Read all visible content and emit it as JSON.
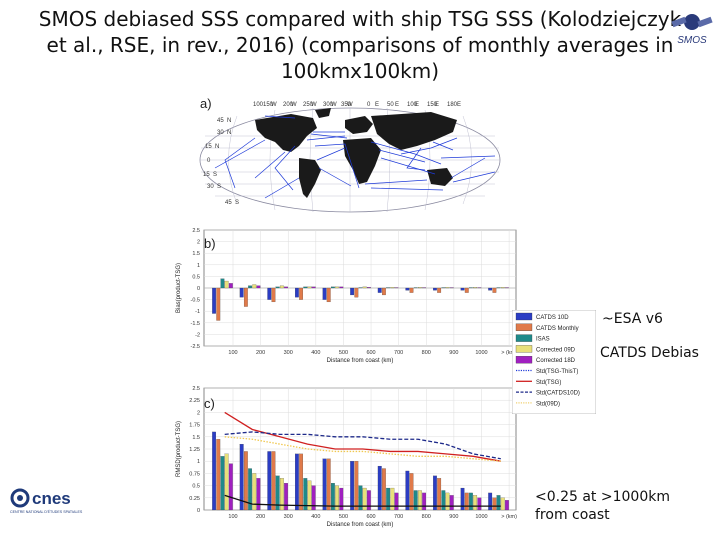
{
  "title_lines": [
    "SMOS debiased SSS compared with ship TSG SSS  (Kolodziejczyk",
    "et al., RSE, in rev., 2016) (comparisons of monthly averages in",
    "100kmx100km)"
  ],
  "panels": {
    "a": "a)",
    "b": "b)",
    "c": "c)"
  },
  "logos": {
    "smos": "SMOS",
    "cnes": "cnes",
    "cnes_sub": "CENTRE NATIONAL D'ÉTUDES SPATIALES"
  },
  "map": {
    "lon_labels": [
      "100",
      "150",
      "W",
      "200",
      "W",
      "250",
      "W",
      "300",
      "W",
      "350",
      "W",
      "0",
      "E",
      "50",
      "E",
      "100",
      "E",
      "150",
      "E",
      "180",
      "E"
    ],
    "lat_labels": [
      "45",
      "N",
      "30",
      "N",
      "15",
      "N",
      "0",
      "15",
      "S",
      "30",
      "S",
      "45",
      "S"
    ],
    "colors": {
      "land": "#1a1a1a",
      "tracks": "#1e3ad8",
      "border": "#8a8aa0"
    }
  },
  "annotations": {
    "esa": "~ESA v6",
    "catds": "CATDS Debias",
    "coast_1": "<0.25 at >1000km",
    "coast_2": "from coast"
  },
  "legend": [
    {
      "label": "CATDS 10D",
      "color": "#2b3dc4",
      "kind": "box"
    },
    {
      "label": "CATDS Monthly",
      "color": "#e07a4a",
      "kind": "box"
    },
    {
      "label": "ISAS",
      "color": "#1f8a8a",
      "kind": "box"
    },
    {
      "label": "Corrected 09D",
      "color": "#e8e07a",
      "kind": "box"
    },
    {
      "label": "Corrected 18D",
      "color": "#a020c0",
      "kind": "box"
    },
    {
      "label": "Std(TSG-ThisT)",
      "color": "#1e3ad8",
      "kind": "dot"
    },
    {
      "label": "Std(TSG)",
      "color": "#d02020",
      "kind": "line"
    },
    {
      "label": "Std(CATDS10D)",
      "color": "#1e2a8a",
      "kind": "dash"
    },
    {
      "label": "Std(09D)",
      "color": "#f0d070",
      "kind": "dot"
    }
  ],
  "chart_data": [
    {
      "type": "bar",
      "panel": "b)",
      "categories": [
        "100",
        "200",
        "300",
        "400",
        "500",
        "600",
        "700",
        "800",
        "900",
        "1000",
        "> (km)"
      ],
      "xlabel": "Distance from coast (km)",
      "ylabel": "Bias(product-TSG)",
      "ylim": [
        -2.5,
        2.5
      ],
      "yticks": [
        "2.5",
        "2",
        "1.5",
        "1",
        "0.5",
        "0",
        "-0.5",
        "-1",
        "-1.5",
        "-2",
        "-2.5"
      ],
      "grid": true,
      "series": [
        {
          "name": "CATDS 10D",
          "values": [
            -1.1,
            -0.4,
            -0.5,
            -0.4,
            -0.5,
            -0.3,
            -0.2,
            -0.1,
            -0.1,
            -0.1,
            -0.1
          ]
        },
        {
          "name": "CATDS Monthly",
          "values": [
            -1.4,
            -0.8,
            -0.6,
            -0.5,
            -0.6,
            -0.4,
            -0.3,
            -0.2,
            -0.2,
            -0.2,
            -0.2
          ]
        },
        {
          "name": "ISAS",
          "values": [
            0.4,
            0.1,
            0.05,
            0.05,
            0.05,
            0.02,
            0.02,
            0.02,
            0.02,
            0.02,
            0.02
          ]
        },
        {
          "name": "Corrected 09D",
          "values": [
            0.3,
            0.15,
            0.1,
            0.05,
            0.05,
            0.05,
            0.03,
            0.03,
            0.03,
            0.03,
            0.03
          ]
        },
        {
          "name": "Corrected 18D",
          "values": [
            0.2,
            0.1,
            0.05,
            0.05,
            0.05,
            0.03,
            0.02,
            0.02,
            0.02,
            0.02,
            0.02
          ]
        }
      ]
    },
    {
      "type": "bar",
      "panel": "c)",
      "categories": [
        "100",
        "200",
        "300",
        "400",
        "500",
        "600",
        "700",
        "800",
        "900",
        "1000",
        "> (km)"
      ],
      "xlabel": "Distance from coast (km)",
      "ylabel": "RMSD(product-TSG)",
      "ylim": [
        0,
        2.5
      ],
      "yticks": [
        "2.5",
        "2.25",
        "2",
        "1.75",
        "1.5",
        "1.25",
        "1",
        "0.75",
        "0.5",
        "0.25",
        "0"
      ],
      "grid": true,
      "series": [
        {
          "name": "CATDS 10D",
          "values": [
            1.6,
            1.35,
            1.2,
            1.15,
            1.05,
            1.0,
            0.9,
            0.8,
            0.7,
            0.45,
            0.35
          ]
        },
        {
          "name": "CATDS Monthly",
          "values": [
            1.45,
            1.2,
            1.2,
            1.15,
            1.05,
            1.0,
            0.85,
            0.75,
            0.65,
            0.35,
            0.25
          ]
        },
        {
          "name": "ISAS",
          "values": [
            1.1,
            0.85,
            0.7,
            0.65,
            0.55,
            0.5,
            0.45,
            0.4,
            0.4,
            0.35,
            0.3
          ]
        },
        {
          "name": "Corrected 09D",
          "values": [
            1.15,
            0.75,
            0.65,
            0.6,
            0.5,
            0.45,
            0.45,
            0.4,
            0.35,
            0.3,
            0.25
          ]
        },
        {
          "name": "Corrected 18D",
          "values": [
            0.95,
            0.65,
            0.55,
            0.5,
            0.45,
            0.4,
            0.35,
            0.35,
            0.3,
            0.25,
            0.2
          ]
        }
      ],
      "lines": [
        {
          "name": "Std(TSG)",
          "color": "#d02020",
          "style": "solid",
          "values": [
            2.0,
            1.65,
            1.5,
            1.35,
            1.25,
            1.25,
            1.2,
            1.2,
            1.15,
            1.1,
            1.0
          ]
        },
        {
          "name": "Std(CATDS10D)",
          "color": "#1e2a8a",
          "style": "dash",
          "values": [
            1.55,
            1.6,
            1.55,
            1.55,
            1.5,
            1.5,
            1.45,
            1.45,
            1.35,
            1.15,
            1.05
          ]
        },
        {
          "name": "Std(09D)",
          "color": "#f0c850",
          "style": "dot",
          "values": [
            1.5,
            1.45,
            1.35,
            1.25,
            1.2,
            1.2,
            1.15,
            1.1,
            1.1,
            1.05,
            1.0
          ]
        },
        {
          "name": "Std(TSG-ThisT)",
          "color": "#111111",
          "style": "solid",
          "values": [
            0.3,
            0.12,
            0.1,
            0.09,
            0.08,
            0.08,
            0.08,
            0.08,
            0.08,
            0.08,
            0.08
          ]
        }
      ]
    }
  ]
}
